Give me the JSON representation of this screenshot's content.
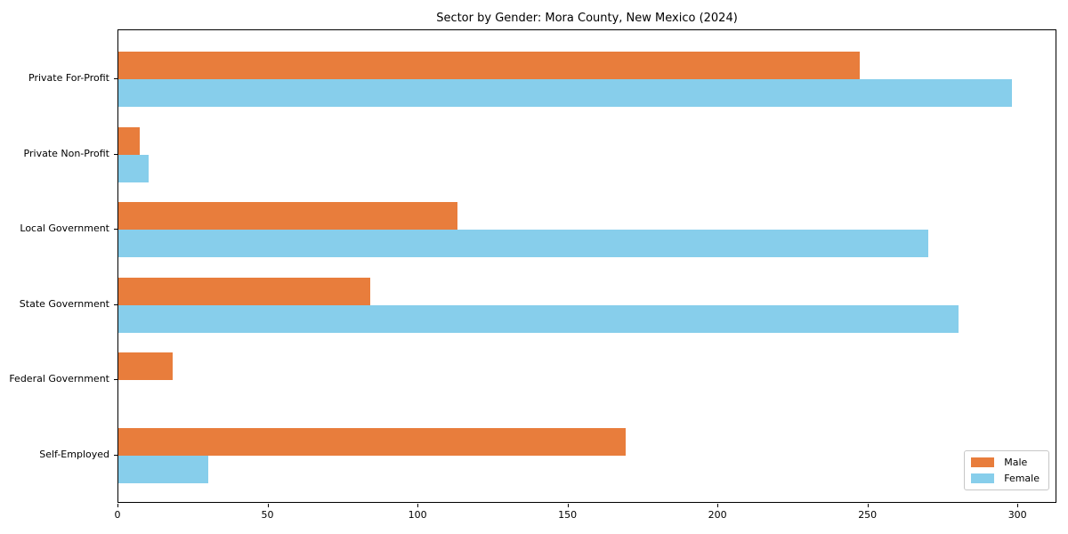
{
  "chart_data": {
    "type": "bar",
    "orientation": "horizontal",
    "title": "Sector by Gender: Mora County, New Mexico (2024)",
    "categories": [
      "Private For-Profit",
      "Private Non-Profit",
      "Local Government",
      "State Government",
      "Federal Government",
      "Self-Employed"
    ],
    "series": [
      {
        "name": "Male",
        "color": "#E87D3C",
        "values": [
          247,
          7,
          113,
          84,
          18,
          169
        ]
      },
      {
        "name": "Female",
        "color": "#87CEEB",
        "values": [
          298,
          10,
          270,
          280,
          0,
          30
        ]
      }
    ],
    "x_ticks": [
      0,
      50,
      100,
      150,
      200,
      250,
      300
    ],
    "xlim": [
      0,
      313
    ],
    "xlabel": "",
    "ylabel": "",
    "grid": false,
    "legend_position": "lower right",
    "axis_color": "#000000",
    "background_color": "#ffffff"
  }
}
